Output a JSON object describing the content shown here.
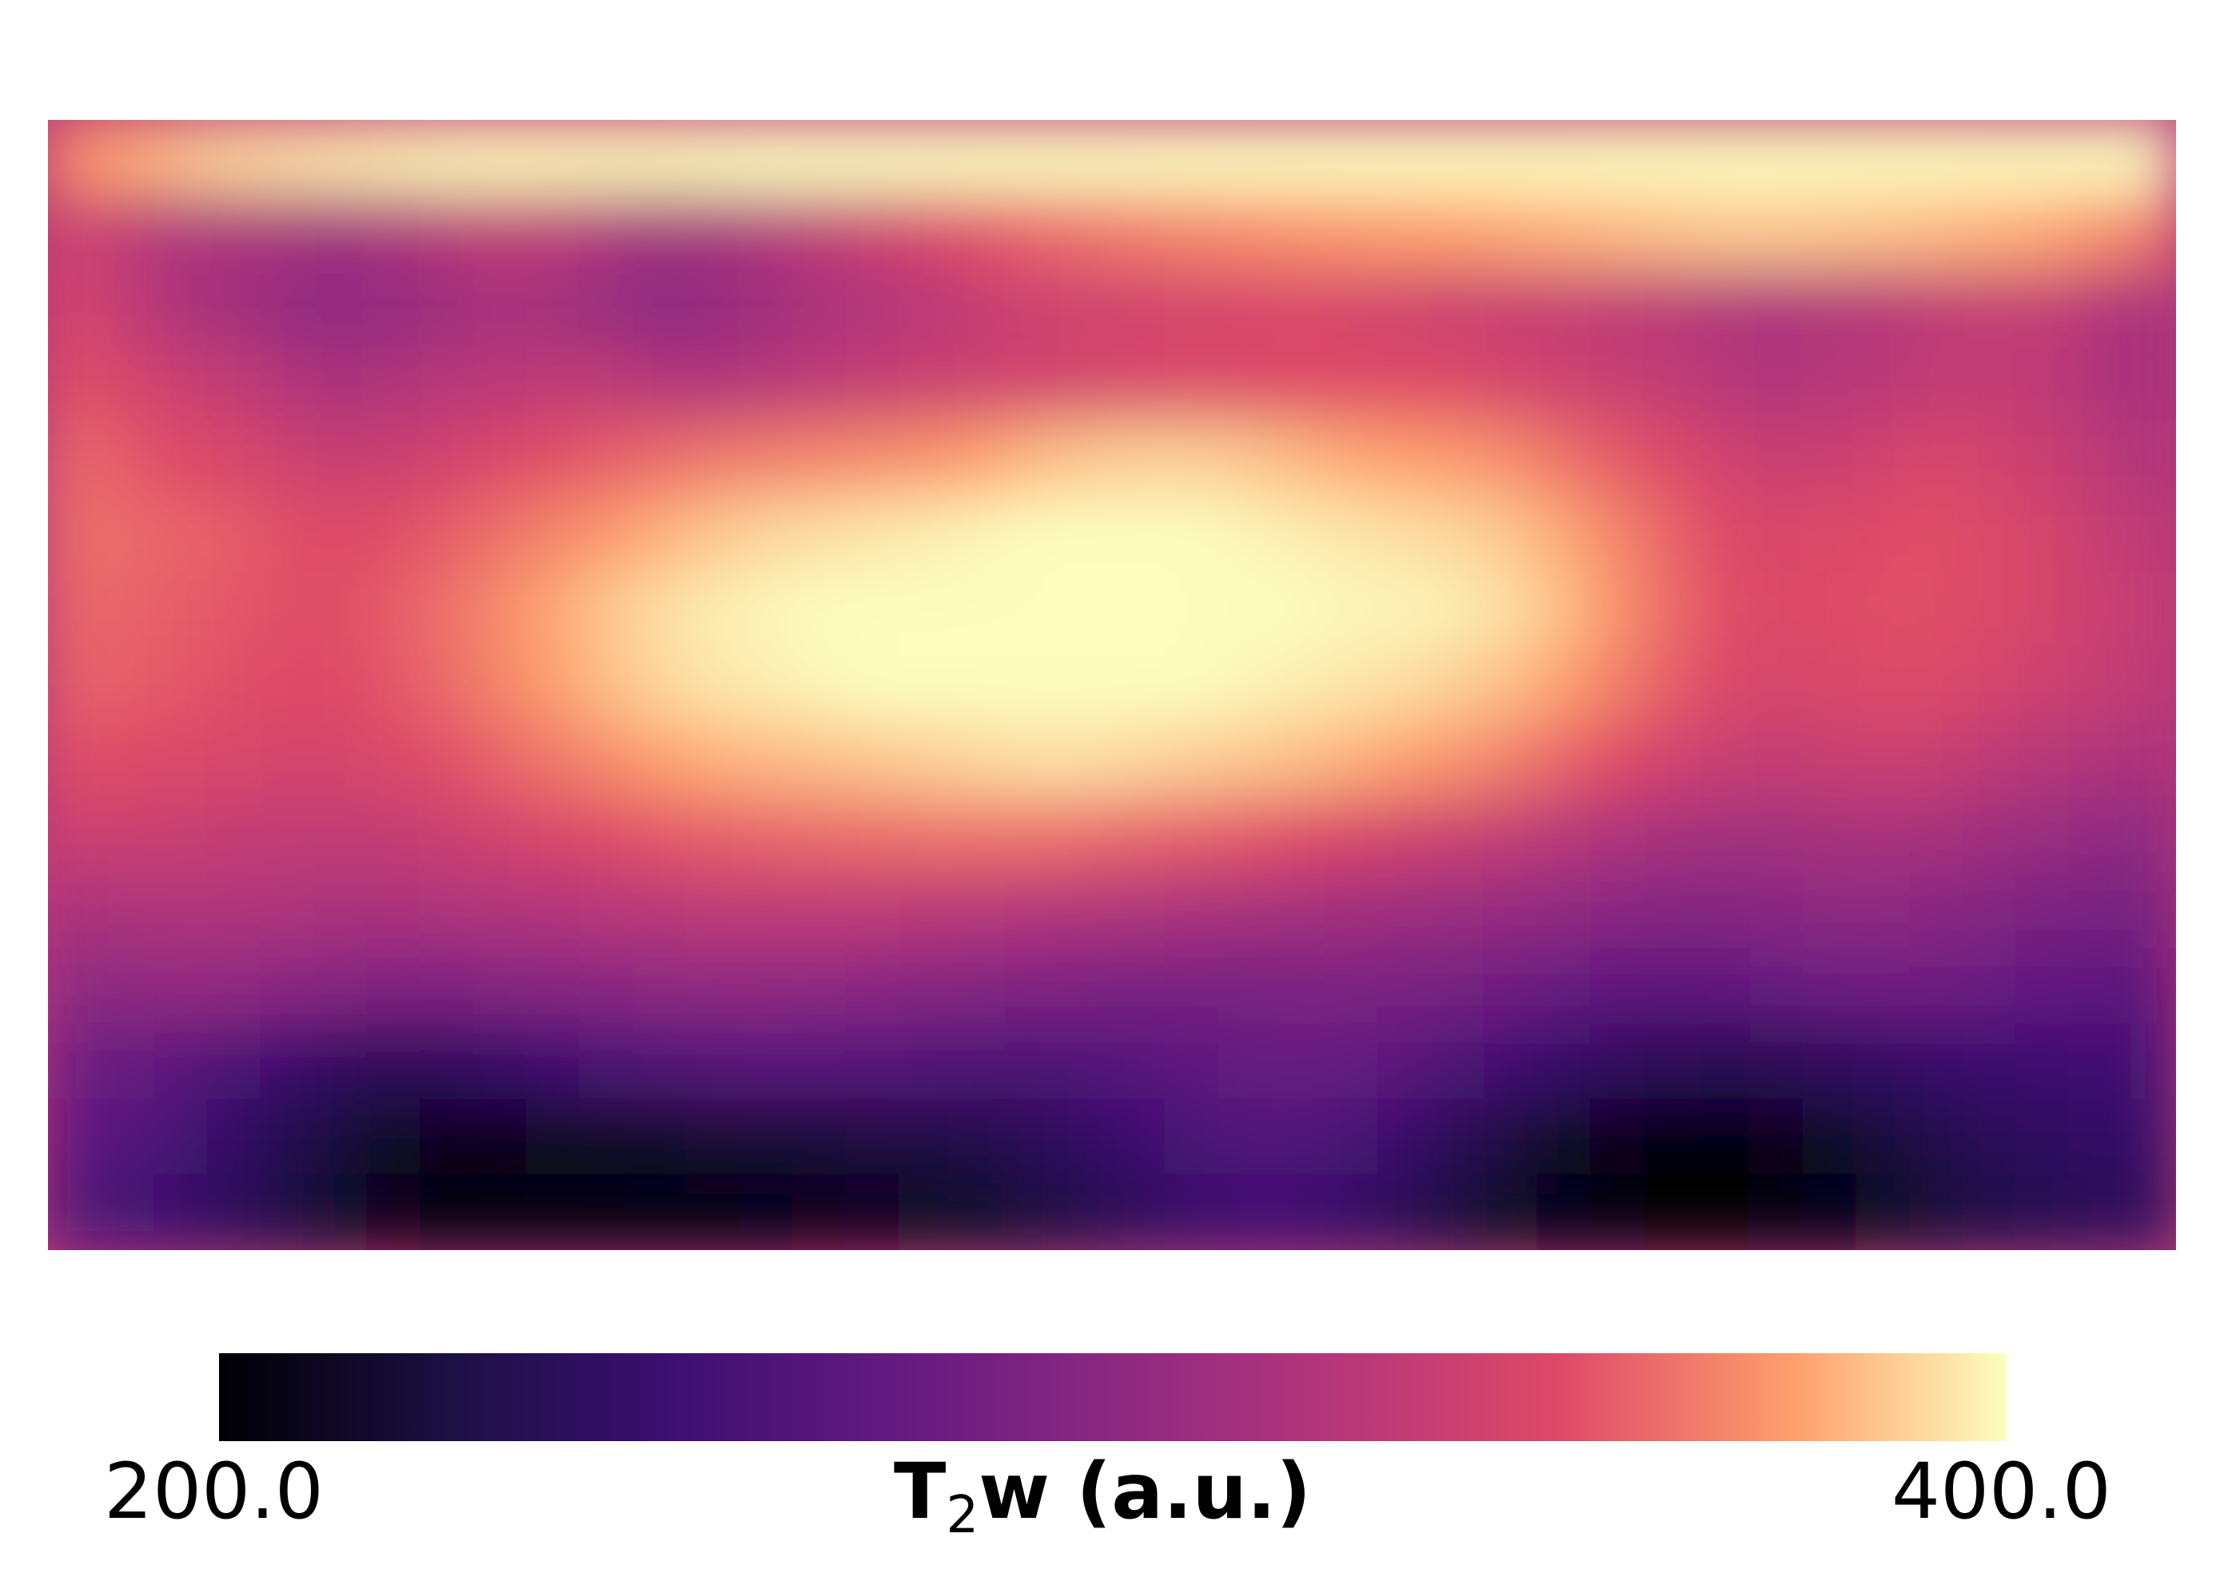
{
  "chart_data": {
    "type": "heatmap",
    "title": "",
    "xlabel": "",
    "ylabel": "",
    "axes_visible": false,
    "colormap": "magma",
    "colorbar": {
      "orientation": "horizontal",
      "placement": "bottom",
      "label_main": "T",
      "label_sub": "2",
      "label_rest": "w (a.u.)",
      "vmin": 200,
      "vmax": 400,
      "tick_labels": [
        "200.0",
        "400.0"
      ]
    },
    "description_grid_note": "",
    "grid": [
      [
        372,
        378,
        385,
        390,
        392,
        394,
        396,
        398,
        398,
        398,
        398,
        398,
        399,
        400,
        400,
        400,
        400,
        400,
        400,
        400,
        400,
        400,
        400,
        400,
        400,
        400,
        400,
        400,
        400,
        400,
        400,
        400,
        400,
        400,
        400,
        400,
        400,
        400,
        400,
        400
      ],
      [
        340,
        330,
        320,
        318,
        315,
        312,
        318,
        325,
        330,
        328,
        320,
        312,
        316,
        322,
        330,
        338,
        345,
        352,
        358,
        362,
        365,
        368,
        370,
        372,
        374,
        375,
        376,
        378,
        380,
        382,
        384,
        386,
        386,
        385,
        384,
        382,
        380,
        378,
        372,
        365
      ],
      [
        345,
        332,
        318,
        315,
        305,
        300,
        306,
        310,
        318,
        314,
        308,
        300,
        305,
        312,
        318,
        322,
        328,
        334,
        338,
        340,
        342,
        344,
        345,
        346,
        344,
        340,
        338,
        335,
        334,
        330,
        328,
        322,
        318,
        322,
        325,
        330,
        332,
        334,
        325,
        315
      ],
      [
        352,
        345,
        338,
        332,
        324,
        318,
        322,
        326,
        328,
        330,
        330,
        325,
        322,
        326,
        330,
        334,
        338,
        340,
        342,
        344,
        346,
        348,
        348,
        350,
        350,
        350,
        348,
        344,
        340,
        336,
        332,
        326,
        322,
        326,
        328,
        332,
        334,
        330,
        322,
        315
      ],
      [
        360,
        355,
        350,
        346,
        340,
        336,
        338,
        342,
        348,
        352,
        356,
        360,
        364,
        366,
        368,
        370,
        372,
        376,
        382,
        386,
        388,
        388,
        386,
        382,
        378,
        376,
        374,
        370,
        362,
        355,
        348,
        342,
        336,
        338,
        342,
        346,
        342,
        338,
        330,
        322
      ],
      [
        362,
        360,
        358,
        356,
        352,
        350,
        352,
        356,
        362,
        368,
        374,
        380,
        386,
        390,
        392,
        394,
        396,
        398,
        400,
        400,
        400,
        400,
        398,
        396,
        394,
        392,
        390,
        386,
        378,
        368,
        358,
        350,
        346,
        348,
        350,
        352,
        348,
        344,
        336,
        330
      ],
      [
        360,
        358,
        356,
        354,
        352,
        352,
        356,
        362,
        370,
        378,
        386,
        392,
        396,
        398,
        400,
        400,
        400,
        400,
        400,
        400,
        400,
        400,
        400,
        400,
        398,
        398,
        396,
        392,
        384,
        372,
        360,
        352,
        348,
        350,
        352,
        352,
        348,
        344,
        338,
        334
      ],
      [
        358,
        356,
        354,
        352,
        350,
        350,
        354,
        360,
        368,
        376,
        384,
        390,
        394,
        396,
        398,
        400,
        400,
        400,
        400,
        400,
        400,
        400,
        398,
        396,
        394,
        392,
        388,
        384,
        376,
        366,
        356,
        348,
        344,
        346,
        348,
        348,
        344,
        340,
        336,
        330
      ],
      [
        352,
        350,
        348,
        346,
        344,
        344,
        348,
        352,
        358,
        364,
        370,
        376,
        380,
        382,
        384,
        386,
        388,
        390,
        392,
        392,
        390,
        388,
        386,
        384,
        380,
        376,
        372,
        366,
        358,
        350,
        342,
        336,
        334,
        336,
        338,
        336,
        330,
        326,
        322,
        318
      ],
      [
        340,
        338,
        336,
        334,
        332,
        332,
        334,
        338,
        342,
        346,
        350,
        354,
        356,
        358,
        360,
        360,
        362,
        362,
        362,
        360,
        358,
        356,
        354,
        350,
        346,
        342,
        338,
        332,
        326,
        320,
        316,
        314,
        314,
        316,
        318,
        316,
        312,
        308,
        304,
        300
      ],
      [
        318,
        320,
        322,
        322,
        320,
        318,
        318,
        320,
        322,
        324,
        326,
        328,
        330,
        330,
        330,
        330,
        328,
        326,
        324,
        322,
        320,
        318,
        316,
        314,
        312,
        310,
        308,
        306,
        302,
        298,
        296,
        296,
        298,
        300,
        300,
        298,
        294,
        290,
        288,
        286
      ],
      [
        300,
        302,
        304,
        302,
        298,
        294,
        292,
        292,
        294,
        296,
        298,
        300,
        302,
        302,
        300,
        298,
        296,
        294,
        292,
        290,
        288,
        288,
        288,
        290,
        290,
        288,
        286,
        282,
        276,
        272,
        270,
        272,
        276,
        280,
        282,
        282,
        278,
        274,
        272,
        270
      ],
      [
        282,
        278,
        270,
        260,
        250,
        242,
        238,
        240,
        246,
        252,
        258,
        262,
        266,
        268,
        268,
        266,
        264,
        262,
        262,
        264,
        268,
        272,
        276,
        278,
        276,
        270,
        262,
        254,
        246,
        240,
        236,
        234,
        236,
        240,
        244,
        248,
        250,
        252,
        254,
        256
      ],
      [
        272,
        266,
        256,
        244,
        232,
        222,
        214,
        210,
        210,
        212,
        214,
        216,
        218,
        220,
        222,
        224,
        226,
        230,
        236,
        244,
        252,
        260,
        264,
        264,
        258,
        248,
        236,
        224,
        214,
        208,
        204,
        204,
        208,
        214,
        222,
        230,
        236,
        240,
        244,
        246
      ],
      [
        262,
        256,
        246,
        236,
        226,
        216,
        208,
        204,
        202,
        202,
        202,
        202,
        204,
        206,
        208,
        210,
        212,
        216,
        222,
        230,
        238,
        246,
        250,
        250,
        244,
        234,
        222,
        212,
        206,
        202,
        200,
        200,
        202,
        206,
        212,
        220,
        228,
        232,
        236,
        238
      ]
    ]
  }
}
